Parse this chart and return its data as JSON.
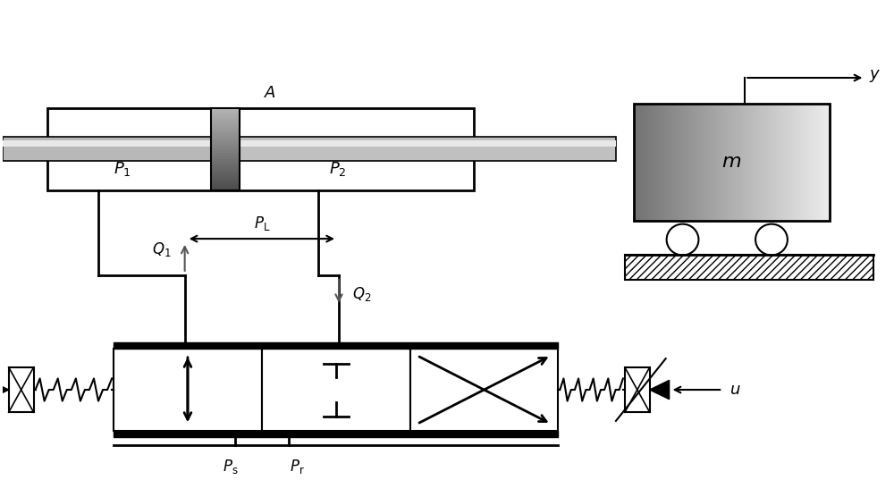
{
  "bg_color": "#ffffff",
  "line_color": "#000000",
  "gray_light": "#d0d0d0",
  "gray_medium": "#a0a0a0",
  "gray_dark": "#606060",
  "figsize": [
    10.0,
    5.37
  ],
  "dpi": 100
}
